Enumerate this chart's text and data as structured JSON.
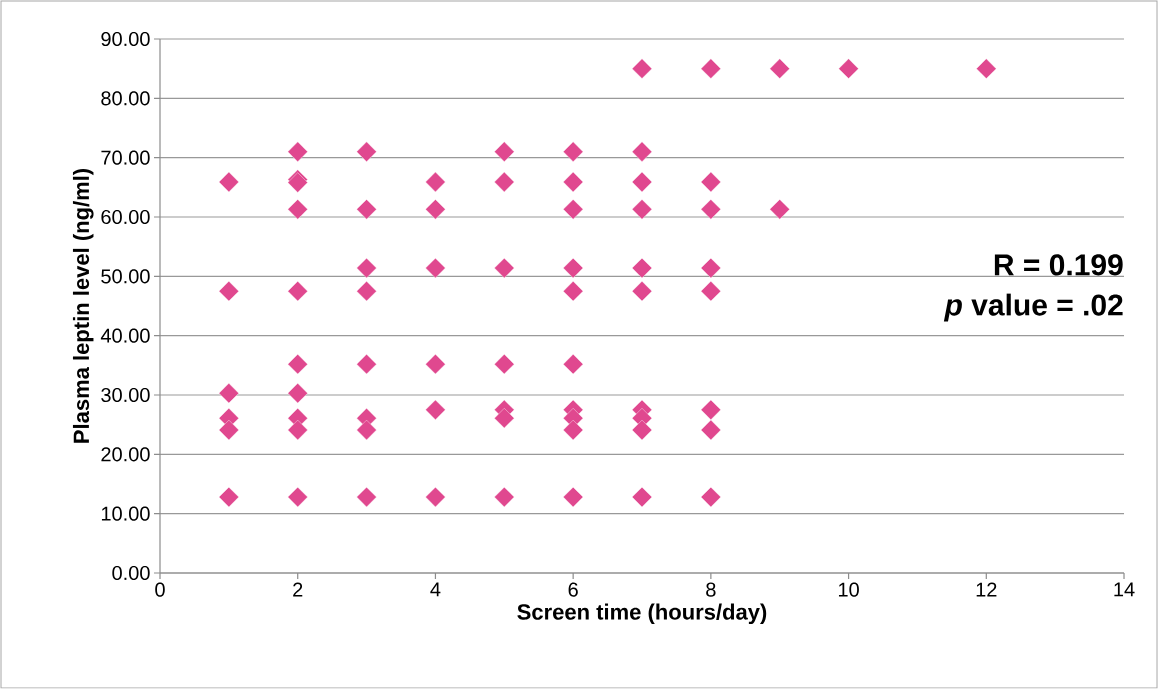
{
  "chart_data": {
    "type": "scatter",
    "xlabel": "Screen time (hours/day)",
    "ylabel": "Plasma leptin level (ng/ml)",
    "annotations": [
      "R = 0.199",
      "*p* value = .02"
    ],
    "series": [
      {
        "color": "#e0488f",
        "x": [
          1,
          1,
          1,
          1,
          1,
          1,
          2,
          2,
          2,
          2,
          2,
          2,
          2,
          2,
          2,
          2,
          3,
          3,
          3,
          3,
          3,
          3,
          3,
          3,
          4,
          4,
          4,
          4,
          4,
          4,
          5,
          5,
          5,
          5,
          5,
          5,
          5,
          6,
          6,
          6,
          6,
          6,
          6,
          6,
          6,
          6,
          6,
          7,
          7,
          7,
          7,
          7,
          7,
          7,
          7,
          7,
          7,
          8,
          8,
          8,
          8,
          8,
          8,
          8,
          8,
          9,
          9,
          10,
          12
        ],
        "values": [
          65.9,
          47.5,
          30.3,
          26.1,
          24.1,
          12.8,
          71,
          66.3,
          65.8,
          61.3,
          47.5,
          35.2,
          30.3,
          26.1,
          24.1,
          12.8,
          71,
          61.3,
          51.4,
          47.5,
          35.2,
          26.1,
          24.1,
          12.8,
          65.9,
          61.3,
          51.4,
          35.2,
          27.5,
          12.8,
          71,
          65.9,
          51.4,
          35.2,
          27.5,
          26.1,
          12.8,
          71,
          65.9,
          61.3,
          51.4,
          47.5,
          35.2,
          27.5,
          26.1,
          24.1,
          12.8,
          85,
          71,
          65.9,
          61.3,
          51.4,
          47.5,
          27.5,
          26.1,
          24.1,
          12.8,
          85,
          65.9,
          61.3,
          51.4,
          47.5,
          27.5,
          24.1,
          12.8,
          85,
          61.3,
          85,
          85
        ]
      }
    ],
    "xlim": [
      0,
      14
    ],
    "xticks": [
      0,
      2,
      4,
      6,
      8,
      10,
      12,
      14
    ],
    "ylim": [
      0,
      90
    ],
    "yticks": [
      {
        "value": 0,
        "label": "0.00"
      },
      {
        "value": 10,
        "label": "10.00"
      },
      {
        "value": 20,
        "label": "20.00"
      },
      {
        "value": 30,
        "label": "30.00"
      },
      {
        "value": 40,
        "label": "40.00"
      },
      {
        "value": 50,
        "label": "50.00"
      },
      {
        "value": 60,
        "label": "60.00"
      },
      {
        "value": 70,
        "label": "70.00"
      },
      {
        "value": 80,
        "label": "80.00"
      },
      {
        "value": 90,
        "label": "90.00"
      }
    ],
    "grid": "y",
    "marker": "diamond"
  }
}
